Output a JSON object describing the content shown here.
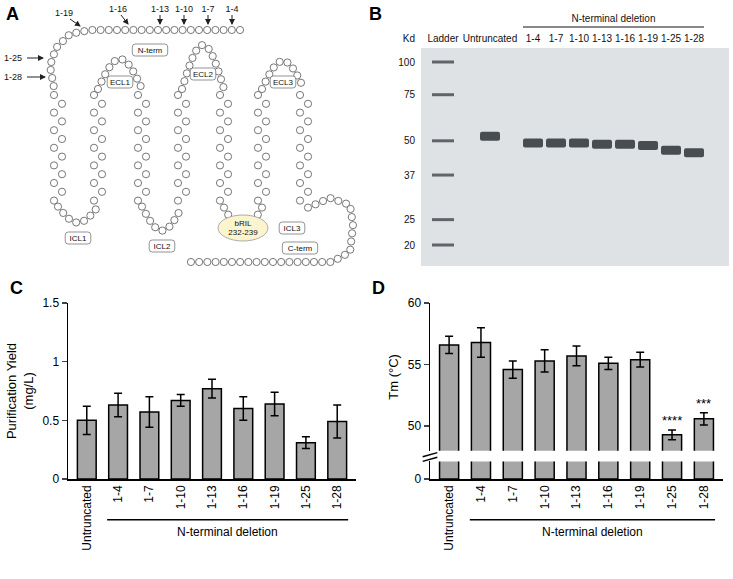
{
  "panel_a": {
    "letter": "A",
    "n_term": "N-term",
    "c_term": "C-term",
    "extracellular_loops": [
      "ECL1",
      "ECL2",
      "ECL3"
    ],
    "intracellular_loops": [
      "ICL1",
      "ICL2",
      "ICL3"
    ],
    "fusion": [
      "bRIL",
      "232-239"
    ],
    "deletions": [
      "1-4",
      "1-7",
      "1-10",
      "1-13",
      "1-16",
      "1-19",
      "1-25",
      "1-28"
    ]
  },
  "panel_b": {
    "letter": "B",
    "unit": "Kd",
    "ladder_kd": [
      100,
      75,
      50,
      37,
      25,
      20
    ],
    "lanes": [
      "Ladder",
      "Untruncated",
      "1-4",
      "1-7",
      "1-10",
      "1-13",
      "1-16",
      "1-19",
      "1-25",
      "1-28"
    ],
    "bands_kd": [
      null,
      52,
      49,
      49,
      49,
      48.5,
      48.5,
      48,
      46,
      45
    ],
    "group_label": "N-terminal deletion",
    "group_start": "1-4",
    "group_end": "1-28"
  },
  "chart_data": [
    {
      "letter": "C",
      "type": "bar",
      "categories": [
        "Untruncated",
        "1-4",
        "1-7",
        "1-10",
        "1-13",
        "1-16",
        "1-19",
        "1-25",
        "1-28"
      ],
      "values": [
        0.5,
        0.63,
        0.57,
        0.67,
        0.77,
        0.6,
        0.64,
        0.31,
        0.49
      ],
      "errors": [
        0.12,
        0.1,
        0.13,
        0.05,
        0.08,
        0.1,
        0.1,
        0.05,
        0.14
      ],
      "color": "#a6a6a6",
      "ylabel": [
        "Purification Yield",
        "(mg/L)"
      ],
      "ylim": [
        0,
        1.5
      ],
      "yticks": [
        0,
        0.5,
        1,
        1.5
      ],
      "grid": false,
      "group_label": "N-terminal deletion",
      "group_start": "1-4",
      "group_end": "1-28"
    },
    {
      "letter": "D",
      "type": "bar",
      "categories": [
        "Untruncated",
        "1-4",
        "1-7",
        "1-10",
        "1-13",
        "1-16",
        "1-19",
        "1-25",
        "1-28"
      ],
      "values": [
        56.6,
        56.8,
        54.6,
        55.3,
        55.7,
        55.1,
        55.4,
        49.3,
        50.6
      ],
      "errors": [
        0.7,
        1.2,
        0.7,
        0.9,
        0.8,
        0.5,
        0.6,
        0.4,
        0.5
      ],
      "significance": [
        null,
        null,
        null,
        null,
        null,
        null,
        null,
        "****",
        "***"
      ],
      "color": "#a6a6a6",
      "ylabel": [
        "Tm (°C)"
      ],
      "ylim": [
        0,
        60
      ],
      "axis_break": [
        2,
        48
      ],
      "yticks": [
        0,
        50,
        55,
        60
      ],
      "grid": false,
      "group_label": "N-terminal deletion",
      "group_start": "1-4",
      "group_end": "1-28"
    }
  ]
}
